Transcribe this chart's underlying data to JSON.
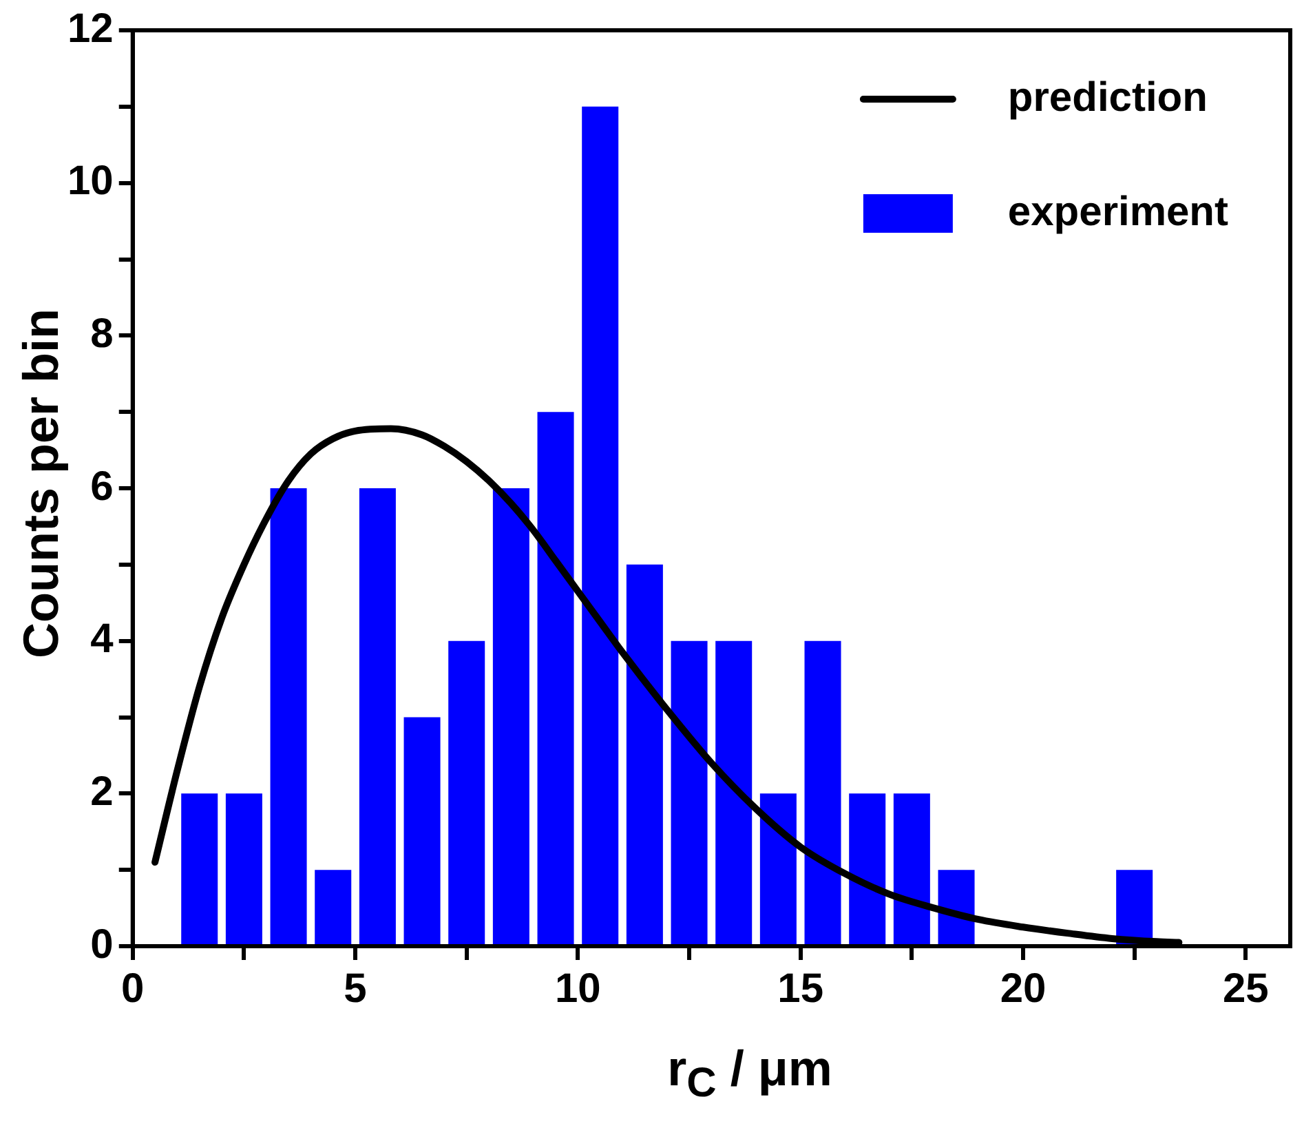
{
  "chart_data": {
    "type": "histogram",
    "xlabel": "r$_{C}$ / μm",
    "ylabel": "Counts per bin",
    "xlim": [
      0,
      26
    ],
    "xticks": [
      0,
      {
        "value": 2.5,
        "label": null
      },
      5,
      {
        "value": 7.5,
        "label": null
      },
      10,
      {
        "value": 12.5,
        "label": null
      },
      15,
      {
        "value": 17.5,
        "label": null
      },
      20,
      {
        "value": 22.5,
        "label": null
      },
      25
    ],
    "ylim": [
      0,
      12
    ],
    "yticks": [
      0,
      {
        "value": 1,
        "label": null
      },
      2,
      {
        "value": 3,
        "label": null
      },
      4,
      {
        "value": 5,
        "label": null
      },
      6,
      {
        "value": 7,
        "label": null
      },
      8,
      {
        "value": 9,
        "label": null
      },
      10,
      {
        "value": 11,
        "label": null
      },
      12
    ],
    "grid": false,
    "legend": "top right",
    "series": [
      {
        "name": "prediction",
        "type": "line",
        "color": "#000000",
        "x": [
          0.5,
          1,
          1.5,
          2,
          2.5,
          3,
          3.5,
          4,
          4.5,
          5,
          5.8,
          6.5,
          7,
          7.5,
          8,
          8.5,
          9,
          9.5,
          10,
          10.5,
          11,
          12,
          13,
          14,
          15,
          16,
          17,
          18,
          19,
          20,
          21,
          22,
          23,
          23.5
        ],
        "values": [
          1.1,
          2.3,
          3.4,
          4.3,
          5.0,
          5.6,
          6.1,
          6.45,
          6.65,
          6.75,
          6.78,
          6.7,
          6.55,
          6.35,
          6.1,
          5.8,
          5.45,
          5.05,
          4.65,
          4.25,
          3.85,
          3.1,
          2.4,
          1.8,
          1.3,
          0.95,
          0.68,
          0.5,
          0.35,
          0.25,
          0.17,
          0.1,
          0.06,
          0.05
        ]
      },
      {
        "name": "experiment",
        "color": "#0000ff",
        "bins": [
          1,
          2,
          3,
          4,
          5,
          6,
          7,
          8,
          9,
          10,
          11,
          12,
          13,
          14,
          15,
          16,
          17,
          18,
          19,
          20,
          21,
          22,
          23
        ],
        "values": [
          2,
          2,
          6,
          1,
          6,
          3,
          4,
          6,
          7,
          11,
          5,
          4,
          4,
          2,
          4,
          2,
          2,
          1,
          0,
          0,
          0,
          1
        ]
      }
    ]
  }
}
